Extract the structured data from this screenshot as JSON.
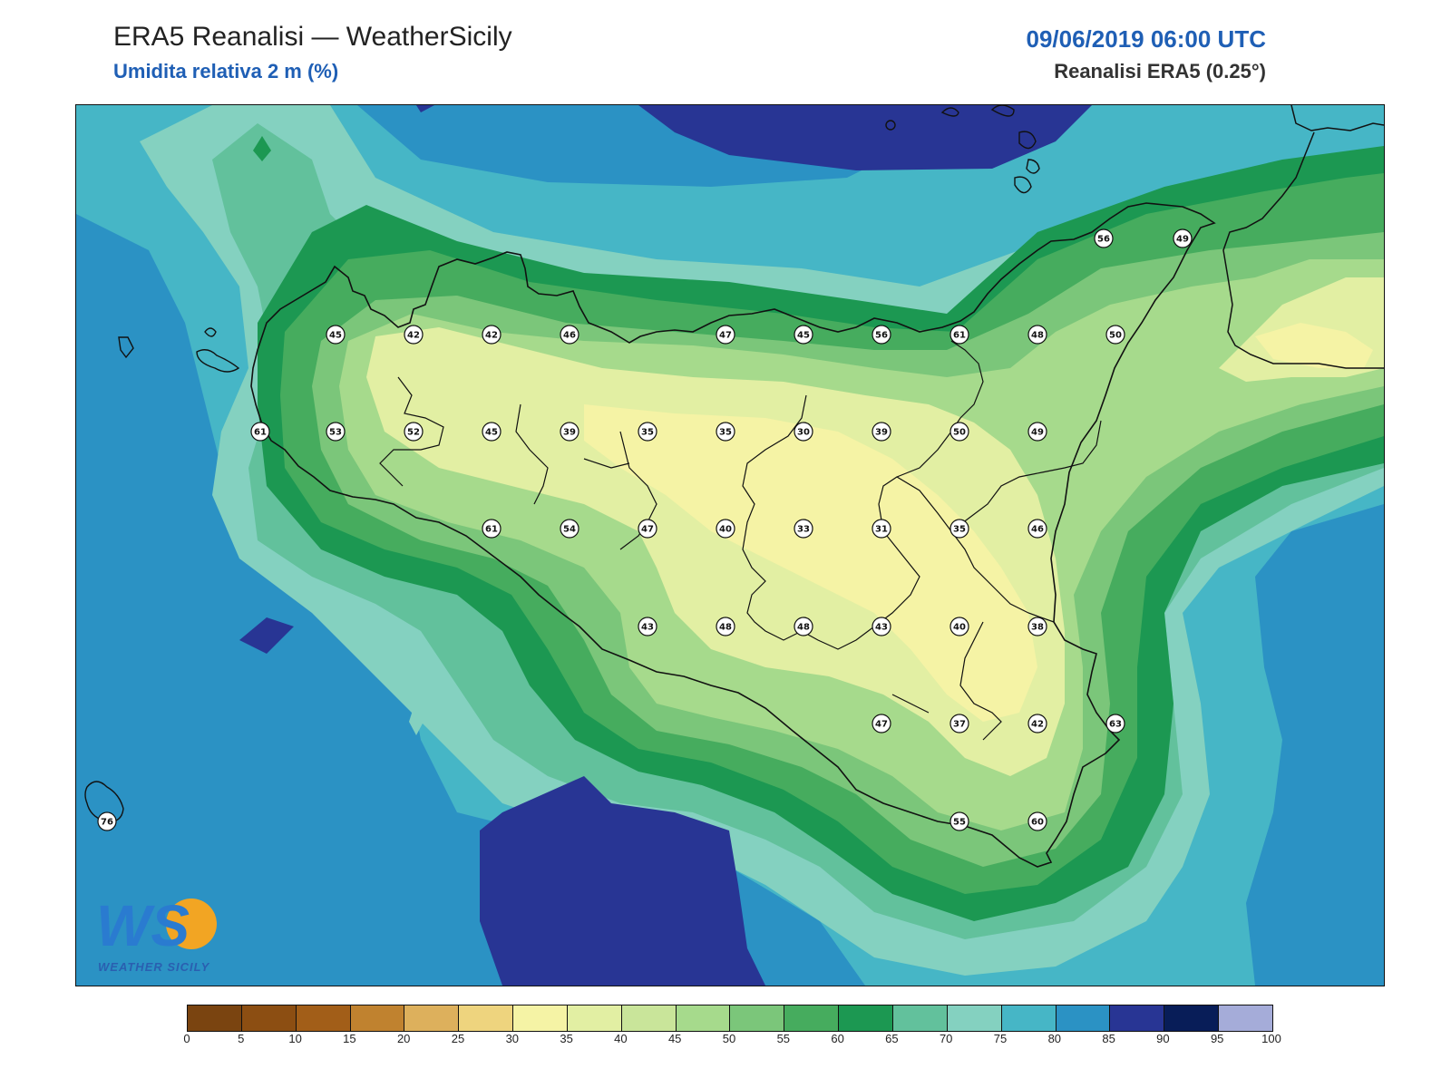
{
  "header": {
    "title": "ERA5 Reanalisi — WeatherSicily",
    "subtitle": "Umidita relativa 2 m (%)",
    "datetime": "09/06/2019 06:00 UTC",
    "source": "Reanalisi ERA5 (0.25°)"
  },
  "logo": {
    "main_text": "WS",
    "sub_text": "WEATHER SICILY"
  },
  "colors": {
    "land_outline": "#111111",
    "title_blue": "#1f5fb5"
  },
  "colorbar": {
    "levels": [
      0,
      5,
      10,
      15,
      20,
      25,
      30,
      35,
      40,
      45,
      50,
      55,
      60,
      65,
      70,
      75,
      80,
      85,
      90,
      95,
      100
    ],
    "colors": [
      "#7a4410",
      "#8c4e12",
      "#a25e18",
      "#c0822f",
      "#ddb05c",
      "#eed47e",
      "#f5f3a5",
      "#e2efa3",
      "#c9e59a",
      "#a6da8c",
      "#7bc67a",
      "#46ac5e",
      "#1c9852",
      "#62c19c",
      "#84d1c0",
      "#46b6c6",
      "#2b92c4",
      "#283594",
      "#081d58",
      "#a5acd9",
      "#8f8dc6"
    ],
    "tick_labels": [
      "0",
      "5",
      "10",
      "15",
      "20",
      "25",
      "30",
      "35",
      "40",
      "45",
      "50",
      "55",
      "60",
      "65",
      "70",
      "75",
      "80",
      "85",
      "90",
      "95",
      "100"
    ]
  },
  "stations": [
    {
      "value": "56"
    },
    {
      "value": "49"
    },
    {
      "value": "45"
    },
    {
      "value": "42"
    },
    {
      "value": "42"
    },
    {
      "value": "46"
    },
    {
      "value": "47"
    },
    {
      "value": "45"
    },
    {
      "value": "56"
    },
    {
      "value": "61"
    },
    {
      "value": "48"
    },
    {
      "value": "50"
    },
    {
      "value": "61"
    },
    {
      "value": "53"
    },
    {
      "value": "52"
    },
    {
      "value": "45"
    },
    {
      "value": "39"
    },
    {
      "value": "35"
    },
    {
      "value": "35"
    },
    {
      "value": "30"
    },
    {
      "value": "39"
    },
    {
      "value": "50"
    },
    {
      "value": "49"
    },
    {
      "value": "61"
    },
    {
      "value": "54"
    },
    {
      "value": "47"
    },
    {
      "value": "40"
    },
    {
      "value": "33"
    },
    {
      "value": "31"
    },
    {
      "value": "35"
    },
    {
      "value": "46"
    },
    {
      "value": "43"
    },
    {
      "value": "48"
    },
    {
      "value": "48"
    },
    {
      "value": "43"
    },
    {
      "value": "40"
    },
    {
      "value": "38"
    },
    {
      "value": "47"
    },
    {
      "value": "37"
    },
    {
      "value": "42"
    },
    {
      "value": "63"
    },
    {
      "value": "55"
    },
    {
      "value": "60"
    },
    {
      "value": "76"
    }
  ]
}
